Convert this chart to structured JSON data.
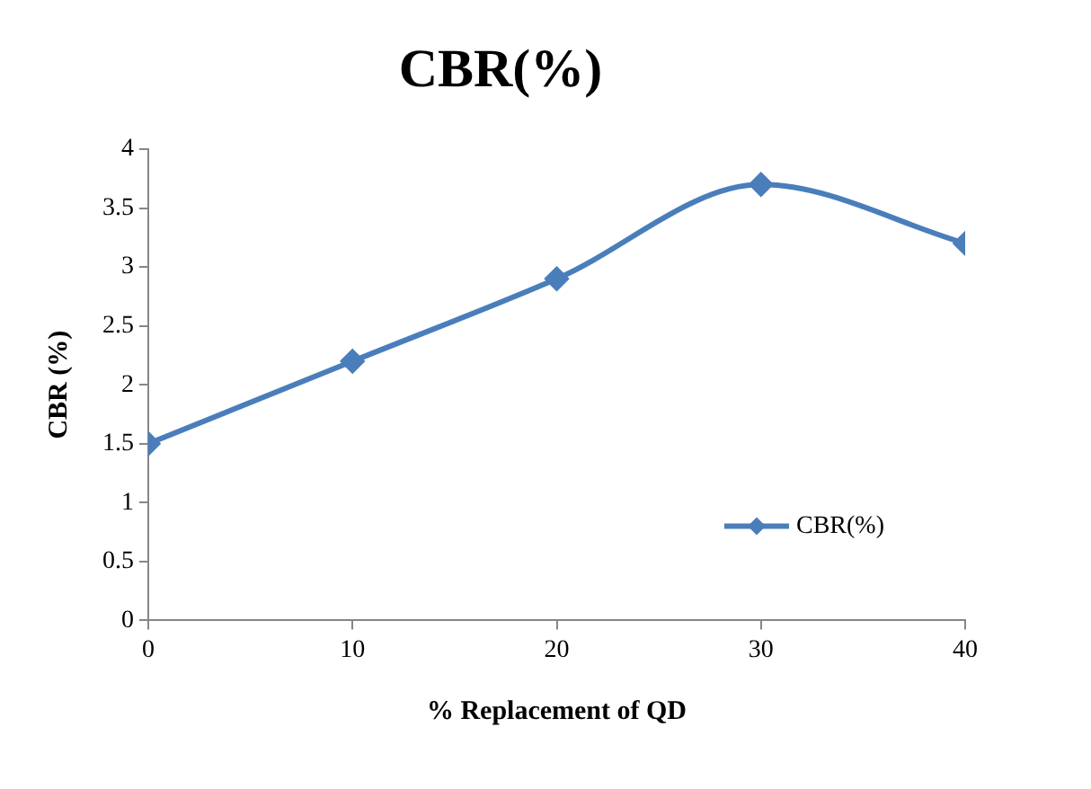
{
  "chart_data": {
    "type": "line",
    "title": "CBR(%)",
    "xlabel": "% Replacement of QD",
    "ylabel": "CBR (%)",
    "x": [
      0,
      10,
      20,
      30,
      40
    ],
    "series": [
      {
        "name": "CBR(%)",
        "color": "#4a7ebb",
        "values": [
          1.5,
          2.2,
          2.9,
          3.7,
          3.2
        ]
      }
    ],
    "xlim": [
      0,
      40
    ],
    "xticks": [
      0,
      10,
      20,
      30,
      40
    ],
    "ylim": [
      0,
      4
    ],
    "yticks": [
      0,
      0.5,
      1,
      1.5,
      2,
      2.5,
      3,
      3.5,
      4
    ],
    "grid": false,
    "legend": "right",
    "marker": "diamond",
    "line_style": "solid"
  }
}
